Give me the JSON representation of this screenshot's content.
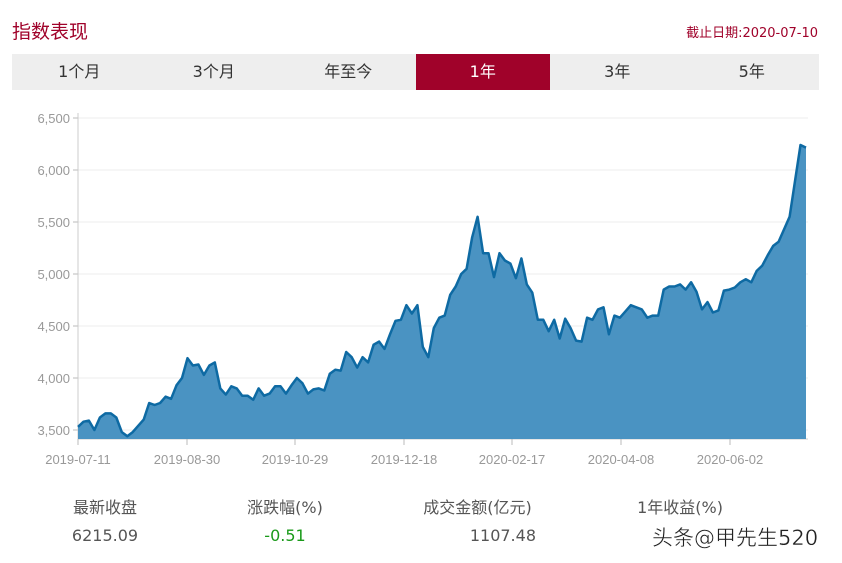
{
  "header": {
    "title": "指数表现",
    "as_of": "截止日期:2020-07-10"
  },
  "tabs": [
    {
      "label": "1个月"
    },
    {
      "label": "3个月"
    },
    {
      "label": "年至今"
    },
    {
      "label": "1年",
      "active": true
    },
    {
      "label": "3年"
    },
    {
      "label": "5年"
    }
  ],
  "chart_data": {
    "type": "area",
    "title": "",
    "xlabel": "",
    "ylabel": "",
    "x_range": [
      "2019-07-11",
      "2020-07-10"
    ],
    "x_ticks": [
      "2019-07-11",
      "2019-08-30",
      "2019-10-29",
      "2019-12-18",
      "2020-02-17",
      "2020-04-08",
      "2020-06-02"
    ],
    "y_ticks": [
      "3,500",
      "4,000",
      "4,500",
      "5,000",
      "5,500",
      "6,000",
      "6,500"
    ],
    "ylim": [
      3450,
      6500
    ],
    "grid": true,
    "line_color": "#0e6aa3",
    "fill_color": "#4a93c2",
    "values": [
      3530,
      3580,
      3590,
      3500,
      3620,
      3660,
      3660,
      3620,
      3480,
      3440,
      3480,
      3540,
      3600,
      3760,
      3740,
      3760,
      3820,
      3800,
      3930,
      4000,
      4190,
      4120,
      4130,
      4030,
      4120,
      4150,
      3900,
      3840,
      3920,
      3900,
      3830,
      3830,
      3790,
      3900,
      3830,
      3850,
      3920,
      3920,
      3850,
      3930,
      4000,
      3950,
      3850,
      3890,
      3900,
      3880,
      4040,
      4080,
      4070,
      4250,
      4200,
      4100,
      4200,
      4150,
      4320,
      4350,
      4280,
      4420,
      4550,
      4560,
      4700,
      4620,
      4700,
      4300,
      4200,
      4480,
      4580,
      4600,
      4800,
      4880,
      5000,
      5050,
      5350,
      5550,
      5200,
      5200,
      4970,
      5200,
      5130,
      5100,
      4960,
      5150,
      4900,
      4820,
      4560,
      4560,
      4450,
      4560,
      4380,
      4570,
      4480,
      4360,
      4350,
      4580,
      4560,
      4660,
      4680,
      4420,
      4600,
      4580,
      4640,
      4700,
      4680,
      4660,
      4580,
      4600,
      4600,
      4850,
      4880,
      4880,
      4900,
      4850,
      4920,
      4830,
      4660,
      4730,
      4630,
      4650,
      4840,
      4850,
      4870,
      4920,
      4950,
      4920,
      5030,
      5080,
      5180,
      5270,
      5310,
      5430,
      5550,
      5900,
      6240,
      6215
    ]
  },
  "stats": [
    {
      "label": "最新收盘",
      "value": "6215.09",
      "color": "#555555"
    },
    {
      "label": "涨跌幅(%)",
      "value": "-0.51",
      "color": "#1a9a1a"
    },
    {
      "label": "成交金额(亿元)",
      "value": "1107.48",
      "color": "#555555"
    },
    {
      "label": "1年收益(%)",
      "value": "",
      "color": "#e0001b"
    }
  ],
  "watermark": "头条@甲先生520"
}
